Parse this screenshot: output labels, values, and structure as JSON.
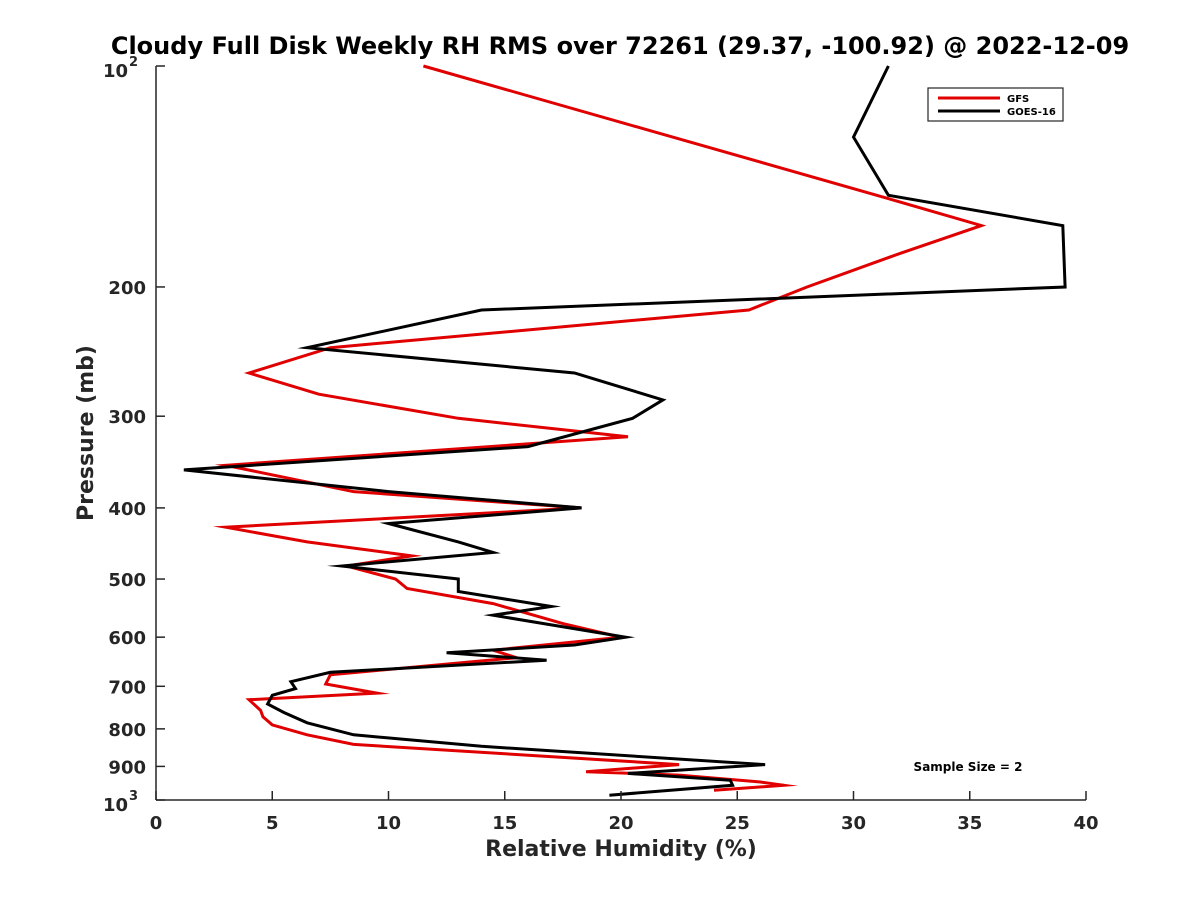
{
  "chart_data": {
    "type": "line",
    "title": "Cloudy Full Disk Weekly RH RMS over 72261 (29.37, -100.92) @ 2022-12-09",
    "xlabel": "Relative Humidity (%)",
    "ylabel": "Pressure (mb)",
    "xlim": [
      0,
      40
    ],
    "ylim": [
      100,
      1000
    ],
    "y_scale": "log",
    "y_reversed": true,
    "grid": false,
    "legend_placement": "top-right",
    "annotation": "Sample Size = 2",
    "x_ticks": [
      "0",
      "5",
      "10",
      "15",
      "20",
      "25",
      "30",
      "35",
      "40"
    ],
    "y_ticks": [
      {
        "value": 100,
        "base": "10",
        "sup": "2"
      },
      {
        "value": 200,
        "label": "200"
      },
      {
        "value": 300,
        "label": "300"
      },
      {
        "value": 400,
        "label": "400"
      },
      {
        "value": 500,
        "label": "500"
      },
      {
        "value": 600,
        "label": "600"
      },
      {
        "value": 700,
        "label": "700"
      },
      {
        "value": 800,
        "label": "800"
      },
      {
        "value": 900,
        "label": "900"
      },
      {
        "value": 1000,
        "base": "10",
        "sup": "3"
      }
    ],
    "series": [
      {
        "name": "GFS",
        "color": "#e00000",
        "points": [
          [
            11.5,
            100
          ],
          [
            31.0,
            150
          ],
          [
            35.5,
            165
          ],
          [
            32.0,
            180
          ],
          [
            28.0,
            200
          ],
          [
            25.5,
            215
          ],
          [
            7.5,
            242
          ],
          [
            4.0,
            262
          ],
          [
            7.0,
            280
          ],
          [
            13.0,
            302
          ],
          [
            20.3,
            320
          ],
          [
            3.0,
            350
          ],
          [
            8.5,
            380
          ],
          [
            18.3,
            400
          ],
          [
            3.0,
            425
          ],
          [
            6.5,
            445
          ],
          [
            11.0,
            465
          ],
          [
            8.2,
            480
          ],
          [
            10.3,
            500
          ],
          [
            10.8,
            515
          ],
          [
            14.5,
            540
          ],
          [
            17.5,
            575
          ],
          [
            20.0,
            600
          ],
          [
            14.5,
            625
          ],
          [
            15.5,
            640
          ],
          [
            7.5,
            675
          ],
          [
            7.3,
            695
          ],
          [
            9.5,
            715
          ],
          [
            4.0,
            730
          ],
          [
            4.5,
            755
          ],
          [
            4.6,
            770
          ],
          [
            5.0,
            790
          ],
          [
            6.5,
            815
          ],
          [
            8.5,
            840
          ],
          [
            22.5,
            895
          ],
          [
            18.5,
            915
          ],
          [
            22.5,
            925
          ],
          [
            26.0,
            945
          ],
          [
            27.0,
            955
          ],
          [
            24.0,
            970
          ]
        ]
      },
      {
        "name": "GOES-16",
        "color": "#000000",
        "points": [
          [
            31.5,
            100
          ],
          [
            30.0,
            125
          ],
          [
            31.5,
            150
          ],
          [
            39.0,
            165
          ],
          [
            39.1,
            200
          ],
          [
            14.0,
            215
          ],
          [
            6.5,
            242
          ],
          [
            18.0,
            262
          ],
          [
            21.8,
            285
          ],
          [
            20.5,
            302
          ],
          [
            16.0,
            330
          ],
          [
            1.2,
            355
          ],
          [
            10.0,
            380
          ],
          [
            18.3,
            400
          ],
          [
            10.0,
            420
          ],
          [
            13.0,
            445
          ],
          [
            14.5,
            460
          ],
          [
            8.0,
            480
          ],
          [
            13.0,
            500
          ],
          [
            13.0,
            520
          ],
          [
            17.0,
            545
          ],
          [
            14.5,
            560
          ],
          [
            20.2,
            600
          ],
          [
            18.0,
            615
          ],
          [
            12.5,
            630
          ],
          [
            16.8,
            645
          ],
          [
            7.5,
            670
          ],
          [
            5.8,
            690
          ],
          [
            6.0,
            705
          ],
          [
            5.0,
            720
          ],
          [
            4.8,
            740
          ],
          [
            5.5,
            760
          ],
          [
            6.5,
            785
          ],
          [
            8.5,
            815
          ],
          [
            14.0,
            845
          ],
          [
            26.2,
            895
          ],
          [
            20.3,
            920
          ],
          [
            24.7,
            940
          ],
          [
            24.8,
            955
          ],
          [
            19.5,
            985
          ]
        ]
      }
    ]
  }
}
